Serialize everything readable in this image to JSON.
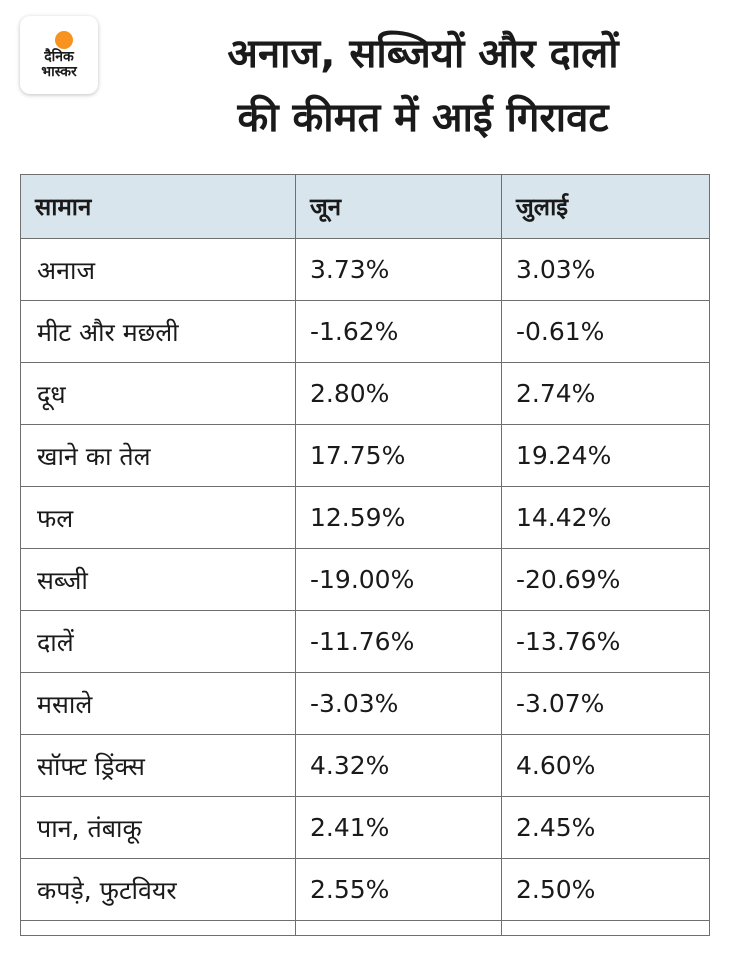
{
  "logo": {
    "line1": "दैनिक",
    "line2": "भास्कर",
    "sun_color": "#f7931e"
  },
  "title": {
    "line1": "अनाज, सब्जियों और दालों",
    "line2": "की कीमत में आई गिरावट"
  },
  "colors": {
    "header_bg": "#d9e5ed",
    "border": "#6f6f6f"
  },
  "chart_data": {
    "type": "table",
    "columns": [
      "सामान",
      "जून",
      "जुलाई"
    ],
    "rows": [
      [
        "अनाज",
        "3.73%",
        "3.03%"
      ],
      [
        "मीट और मछली",
        "-1.62%",
        "-0.61%"
      ],
      [
        "दूध",
        "2.80%",
        "2.74%"
      ],
      [
        "खाने का तेल",
        "17.75%",
        "19.24%"
      ],
      [
        "फल",
        "12.59%",
        "14.42%"
      ],
      [
        "सब्जी",
        "-19.00%",
        "-20.69%"
      ],
      [
        "दालें",
        "-11.76%",
        "-13.76%"
      ],
      [
        "मसाले",
        "-3.03%",
        "-3.07%"
      ],
      [
        "सॉफ्ट ड्रिंक्स",
        "4.32%",
        "4.60%"
      ],
      [
        "पान, तंबाकू",
        "2.41%",
        "2.45%"
      ],
      [
        "कपड़े, फुटवियर",
        "2.55%",
        "2.50%"
      ]
    ]
  }
}
